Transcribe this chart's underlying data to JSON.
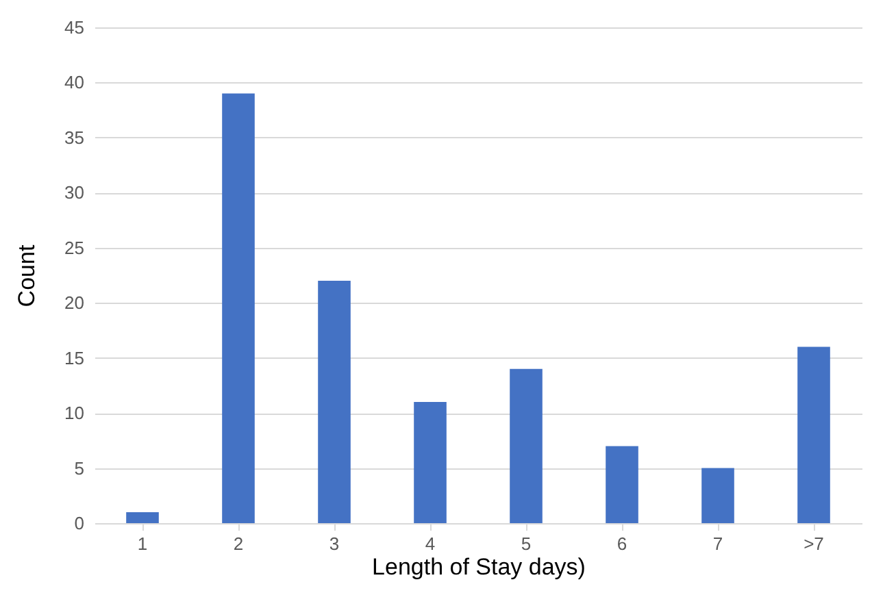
{
  "chart_data": {
    "type": "bar",
    "xlabel": "Length of Stay days)",
    "ylabel": "Count",
    "categories": [
      "1",
      "2",
      "3",
      "4",
      "5",
      "6",
      "7",
      ">7"
    ],
    "values": [
      1,
      39,
      22,
      11,
      14,
      7,
      5,
      16
    ],
    "color": "#4472c4",
    "ylim": [
      0,
      45
    ],
    "yticks": [
      0,
      5,
      10,
      15,
      20,
      25,
      30,
      35,
      40,
      45
    ],
    "grid": "y"
  }
}
